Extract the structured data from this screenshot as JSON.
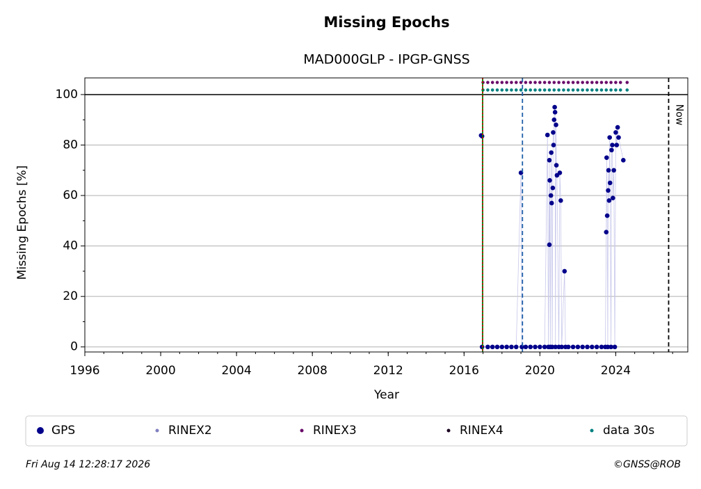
{
  "chart_data": {
    "type": "scatter",
    "title": "Missing Epochs",
    "subtitle": "MAD000GLP - IPGP-GNSS",
    "x_label": "Year",
    "y_label": "Missing Epochs [%]",
    "xlim": [
      1996,
      2027.8
    ],
    "ylim": [
      -2,
      106.6
    ],
    "xticks": [
      1996,
      2000,
      2004,
      2008,
      2012,
      2016,
      2020,
      2024
    ],
    "yticks": [
      0,
      20,
      40,
      60,
      80,
      100
    ],
    "grid": true,
    "hlines": [
      {
        "y": 100,
        "color": "#000000"
      }
    ],
    "vlines": [
      {
        "x": 2016.98,
        "color": "#008000",
        "style": "solid"
      },
      {
        "x": 2016.98,
        "color": "#d00000",
        "style": "dotted"
      },
      {
        "x": 2019.08,
        "color": "#1f5fa8",
        "style": "dashed"
      },
      {
        "x": 2026.79,
        "color": "#000000",
        "style": "dashed",
        "label": "Now"
      }
    ],
    "series": [
      {
        "name": "GPS",
        "color": "#00008b",
        "line_color": "#c8c8ec",
        "x": [
          2016.9,
          2016.95,
          2016.95,
          2017.25,
          2017.5,
          2017.75,
          2018.0,
          2018.25,
          2018.5,
          2018.75,
          2019.0,
          2019.05,
          2019.25,
          2019.5,
          2019.75,
          2020.0,
          2020.25,
          2020.4,
          2020.45,
          2020.5,
          2020.5,
          2020.52,
          2020.55,
          2020.58,
          2020.6,
          2020.62,
          2020.65,
          2020.68,
          2020.7,
          2020.72,
          2020.75,
          2020.78,
          2020.8,
          2020.82,
          2020.85,
          2020.87,
          2020.9,
          2021.0,
          2021.05,
          2021.1,
          2021.15,
          2021.3,
          2021.35,
          2021.5,
          2021.75,
          2022.0,
          2022.25,
          2022.5,
          2022.75,
          2023.0,
          2023.25,
          2023.45,
          2023.5,
          2023.52,
          2023.55,
          2023.58,
          2023.6,
          2023.62,
          2023.65,
          2023.68,
          2023.7,
          2023.75,
          2023.78,
          2023.82,
          2023.85,
          2023.9,
          2023.95,
          2024.0,
          2024.05,
          2024.1,
          2024.15,
          2024.4
        ],
        "values": [
          83.8,
          83.5,
          0,
          0,
          0,
          0,
          0,
          0,
          0,
          0,
          69,
          0,
          0,
          0,
          0,
          0,
          0,
          84,
          0,
          74,
          40.5,
          66,
          0,
          60,
          77,
          57,
          0,
          63,
          85,
          80,
          90,
          95,
          93,
          0,
          88,
          72,
          68,
          0,
          69,
          58,
          0,
          30,
          0,
          0,
          0,
          0,
          0,
          0,
          0,
          0,
          0,
          0,
          45.5,
          75,
          52,
          0,
          62,
          70,
          58,
          83,
          65,
          0,
          78,
          80,
          59,
          70,
          0,
          85,
          80,
          87,
          83,
          74
        ]
      },
      {
        "name": "RINEX2",
        "color": "#8080c0",
        "x": [],
        "values": []
      },
      {
        "name": "RINEX3",
        "color": "#6a0a6a",
        "x": [
          2017.0,
          2017.25,
          2017.5,
          2017.75,
          2018.0,
          2018.25,
          2018.5,
          2018.75,
          2019.0,
          2019.25,
          2019.5,
          2019.75,
          2020.0,
          2020.25,
          2020.5,
          2020.75,
          2021.0,
          2021.25,
          2021.5,
          2021.75,
          2022.0,
          2022.25,
          2022.5,
          2022.75,
          2023.0,
          2023.25,
          2023.5,
          2023.75,
          2024.0,
          2024.25,
          2024.6
        ],
        "values": [
          104.8,
          104.8,
          104.8,
          104.8,
          104.8,
          104.8,
          104.8,
          104.8,
          104.8,
          104.8,
          104.8,
          104.8,
          104.8,
          104.8,
          104.8,
          104.8,
          104.8,
          104.8,
          104.8,
          104.8,
          104.8,
          104.8,
          104.8,
          104.8,
          104.8,
          104.8,
          104.8,
          104.8,
          104.8,
          104.8,
          104.8
        ]
      },
      {
        "name": "RINEX4",
        "color": "#1a0020",
        "x": [],
        "values": []
      },
      {
        "name": "data 30s",
        "color": "#008080",
        "x": [
          2017.0,
          2017.25,
          2017.5,
          2017.75,
          2018.0,
          2018.25,
          2018.5,
          2018.75,
          2019.0,
          2019.25,
          2019.5,
          2019.75,
          2020.0,
          2020.25,
          2020.5,
          2020.75,
          2021.0,
          2021.25,
          2021.5,
          2021.75,
          2022.0,
          2022.25,
          2022.5,
          2022.75,
          2023.0,
          2023.25,
          2023.5,
          2023.75,
          2024.0,
          2024.25,
          2024.6
        ],
        "values": [
          101.8,
          101.8,
          101.8,
          101.8,
          101.8,
          101.8,
          101.8,
          101.8,
          101.8,
          101.8,
          101.8,
          101.8,
          101.8,
          101.8,
          101.8,
          101.8,
          101.8,
          101.8,
          101.8,
          101.8,
          101.8,
          101.8,
          101.8,
          101.8,
          101.8,
          101.8,
          101.8,
          101.8,
          101.8,
          101.8,
          101.8
        ]
      }
    ],
    "footer_left": "Fri Aug 14 12:28:17 2026",
    "footer_right": "©GNSS@ROB"
  }
}
